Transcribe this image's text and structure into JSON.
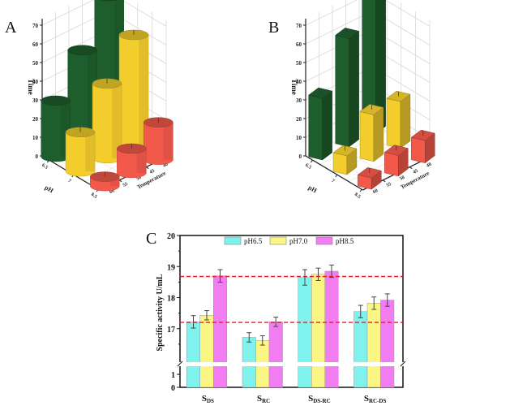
{
  "chart_data": [
    {
      "panel": "A",
      "type": "bar",
      "style": "3d-cylinder",
      "zlabel": "Time",
      "xlabel": "pH",
      "ylabel": "Temperature",
      "x_categories": [
        "6.5",
        "7",
        "8.5"
      ],
      "y_categories": [
        "60",
        "55",
        "50",
        "45",
        "40"
      ],
      "z_ticks": [
        "0",
        "10",
        "20",
        "30",
        "40",
        "50",
        "60",
        "70"
      ],
      "zlim": [
        0,
        75
      ],
      "colors": {
        "6.5": "#1e5e2c",
        "7": "#f2cd2c",
        "8.5": "#f2594a"
      },
      "bars": [
        {
          "ph": "6.5",
          "temp": "60",
          "value": 30
        },
        {
          "ph": "6.5",
          "temp": "50",
          "value": 50
        },
        {
          "ph": "6.5",
          "temp": "40",
          "value": 72
        },
        {
          "ph": "7",
          "temp": "60",
          "value": 21
        },
        {
          "ph": "7",
          "temp": "50",
          "value": 40
        },
        {
          "ph": "7",
          "temp": "40",
          "value": 59
        },
        {
          "ph": "8.5",
          "temp": "60",
          "value": 5
        },
        {
          "ph": "8.5",
          "temp": "50",
          "value": 13
        },
        {
          "ph": "8.5",
          "temp": "40",
          "value": 20
        }
      ]
    },
    {
      "panel": "B",
      "type": "bar",
      "style": "3d-box",
      "zlabel": "Time",
      "xlabel": "pH",
      "ylabel": "Temperature",
      "x_categories": [
        "6.5",
        "7",
        "8.5"
      ],
      "y_categories": [
        "60",
        "55",
        "50",
        "45",
        "40"
      ],
      "z_ticks": [
        "0",
        "10",
        "20",
        "30",
        "40",
        "50",
        "60",
        "70"
      ],
      "zlim": [
        0,
        75
      ],
      "colors": {
        "6.5": "#1e5e2c",
        "7": "#f2cd2c",
        "8.5": "#f2594a"
      },
      "bars": [
        {
          "ph": "6.5",
          "temp": "60",
          "value": 33
        },
        {
          "ph": "6.5",
          "temp": "50",
          "value": 58
        },
        {
          "ph": "6.5",
          "temp": "40",
          "value": 74
        },
        {
          "ph": "7",
          "temp": "60",
          "value": 10
        },
        {
          "ph": "7",
          "temp": "50",
          "value": 25
        },
        {
          "ph": "7",
          "temp": "40",
          "value": 25
        },
        {
          "ph": "8.5",
          "temp": "60",
          "value": 6
        },
        {
          "ph": "8.5",
          "temp": "50",
          "value": 11
        },
        {
          "ph": "8.5",
          "temp": "40",
          "value": 12
        }
      ]
    },
    {
      "panel": "C",
      "type": "bar",
      "title": "",
      "xlabel": "",
      "ylabel": "Specific activity U/mL",
      "categories": [
        {
          "main": "S",
          "sub": "DS"
        },
        {
          "main": "S",
          "sub": "RC"
        },
        {
          "main": "S",
          "sub": "DS-RC"
        },
        {
          "main": "S",
          "sub": "RC-DS"
        }
      ],
      "series": [
        {
          "name": "pH6.5",
          "color": "#7ff2ee",
          "values": [
            17.22,
            16.72,
            18.65,
            17.55
          ],
          "errors": [
            0.2,
            0.15,
            0.25,
            0.2
          ]
        },
        {
          "name": "pH7.0",
          "color": "#fbf584",
          "values": [
            17.43,
            16.62,
            18.75,
            17.82
          ],
          "errors": [
            0.15,
            0.15,
            0.2,
            0.2
          ]
        },
        {
          "name": "pH8.5",
          "color": "#f27cf2",
          "values": [
            18.7,
            17.22,
            18.85,
            17.92
          ],
          "errors": [
            0.2,
            0.15,
            0.2,
            0.2
          ]
        }
      ],
      "y_ticks_upper": [
        "17",
        "18",
        "19",
        "20"
      ],
      "y_ticks_lower": [
        "0",
        "1"
      ],
      "ylim_upper": [
        16.0,
        20.0
      ],
      "ylim_lower": [
        0,
        1.5
      ],
      "axis_break": true,
      "reference_lines": [
        18.68,
        17.2
      ],
      "reference_line_color": "#e0202a",
      "legend": "top"
    }
  ],
  "panel_labels": {
    "a": "A",
    "b": "B",
    "c": "C"
  }
}
